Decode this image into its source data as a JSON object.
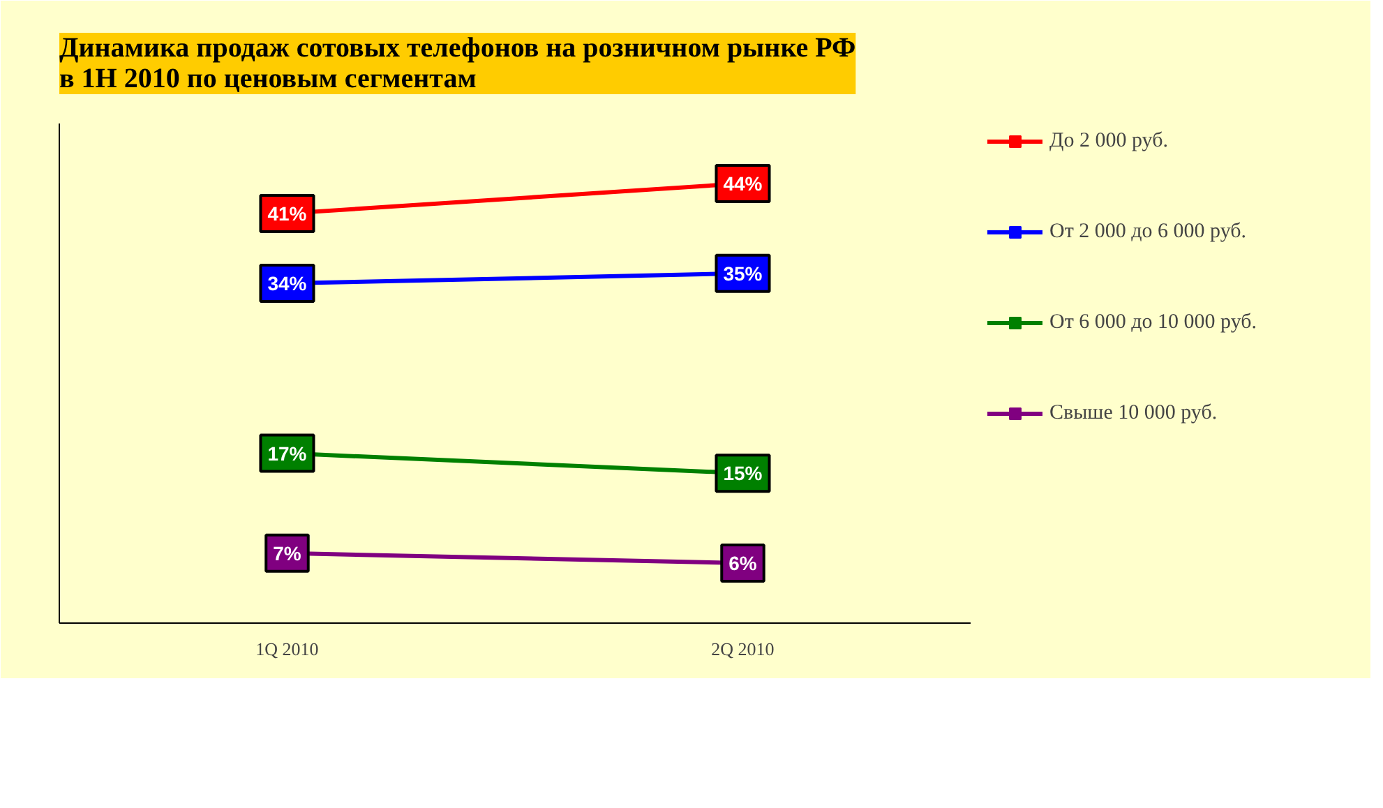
{
  "chart_data": {
    "type": "line",
    "title": "Динамика продаж сотовых телефонов на розничном рынке РФ\nв 1H 2010 по ценовым сегментам",
    "categories": [
      "1Q 2010",
      "2Q 2010"
    ],
    "ylim": [
      0,
      50
    ],
    "tick_labels": "x",
    "legend": "right",
    "marker": "square",
    "series": [
      {
        "name": "До 2 000 руб.",
        "color": "#ff0000",
        "values": [
          41,
          44
        ],
        "value_labels": [
          "41%",
          "44%"
        ]
      },
      {
        "name": "От 2 000 до 6 000 руб.",
        "color": "#0000ff",
        "values": [
          34,
          35
        ],
        "value_labels": [
          "34%",
          "35%"
        ]
      },
      {
        "name": "От 6 000 до 10 000 руб.",
        "color": "#008000",
        "values": [
          17,
          15
        ],
        "value_labels": [
          "17%",
          "15%"
        ]
      },
      {
        "name": "Свыше 10 000 руб.",
        "color": "#800080",
        "values": [
          7,
          6
        ],
        "value_labels": [
          "7%",
          "6%"
        ]
      }
    ]
  }
}
